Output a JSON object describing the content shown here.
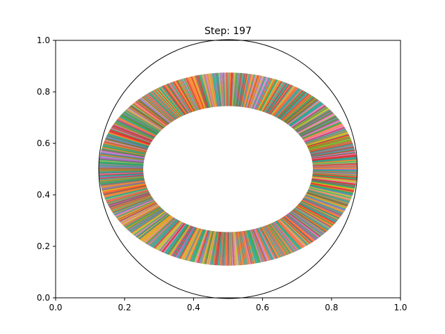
{
  "chart_data": {
    "type": "polar-line-ring",
    "title": "Step: 197",
    "xlabel": "",
    "ylabel": "",
    "xlim": [
      0.0,
      1.0
    ],
    "ylim": [
      0.0,
      1.0
    ],
    "xticks": [
      "0.0",
      "0.2",
      "0.4",
      "0.6",
      "0.8",
      "1.0"
    ],
    "yticks": [
      "0.0",
      "0.2",
      "0.4",
      "0.6",
      "0.8",
      "1.0"
    ],
    "grid": false,
    "legend": "none",
    "circle": {
      "center": [
        0.5,
        0.5
      ],
      "radius": 0.375,
      "edge_color": "#000000"
    },
    "ring": {
      "inner_radius": 0.25,
      "outer_radius": 0.375,
      "line_count": 720
    },
    "palette": [
      "#ff5a1f",
      "#2ca02c",
      "#9467bd",
      "#e07b39",
      "#17a589",
      "#d62728",
      "#7f7f7f",
      "#bcbd22",
      "#8c564b",
      "#e377c2",
      "#1f9e89",
      "#ff7f0e"
    ]
  }
}
